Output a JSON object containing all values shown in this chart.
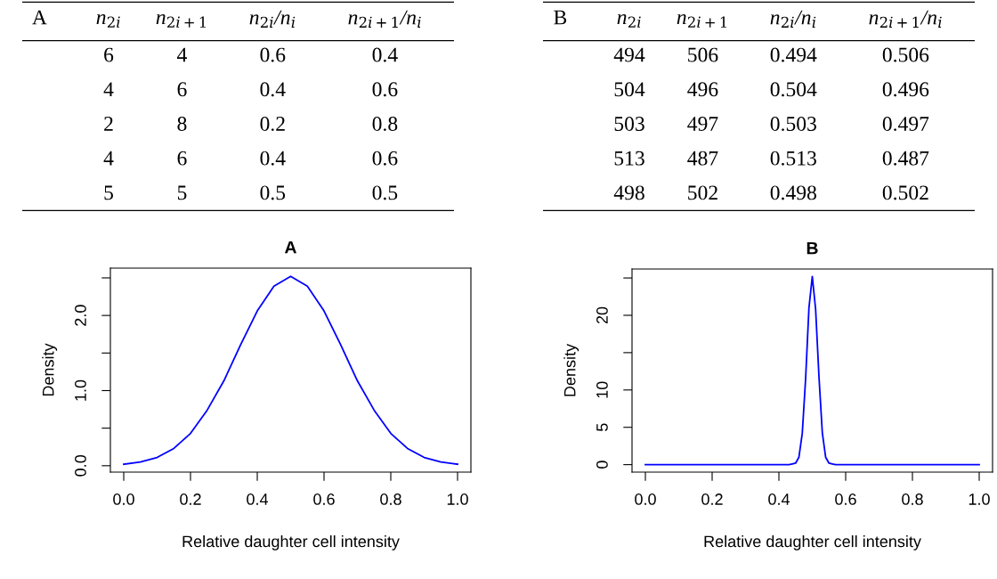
{
  "chart_data": [
    {
      "type": "other",
      "title": "A",
      "categories": [
        "n$_{2i}$",
        "n$_{2i+1}$",
        "n$_{2i}$/n$_{i}$",
        "n$_{2i+1}$/n$_{i}$"
      ],
      "cell_labels": [
        [
          "6",
          "4",
          "0.6",
          "0.4"
        ],
        [
          "4",
          "6",
          "0.4",
          "0.6"
        ],
        [
          "2",
          "8",
          "0.2",
          "0.8"
        ],
        [
          "4",
          "6",
          "0.4",
          "0.6"
        ],
        [
          "5",
          "5",
          "0.5",
          "0.5"
        ]
      ]
    },
    {
      "type": "other",
      "title": "B",
      "categories": [
        "n$_{2i}$",
        "n$_{2i+1}$",
        "n$_{2i}$/n$_{i}$",
        "n$_{2i+1}$/n$_{i}$"
      ],
      "cell_labels": [
        [
          "494",
          "506",
          "0.494",
          "0.506"
        ],
        [
          "504",
          "496",
          "0.504",
          "0.496"
        ],
        [
          "503",
          "497",
          "0.503",
          "0.497"
        ],
        [
          "513",
          "487",
          "0.513",
          "0.487"
        ],
        [
          "498",
          "502",
          "0.498",
          "0.502"
        ]
      ]
    },
    {
      "type": "line",
      "title": "A",
      "xlabel": "Relative daughter cell intensity",
      "ylabel": "Density",
      "x": [
        0,
        0.05,
        0.1,
        0.15,
        0.2,
        0.25,
        0.3,
        0.35,
        0.4,
        0.45,
        0.5,
        0.55,
        0.6,
        0.65,
        0.7,
        0.75,
        0.8,
        0.85,
        0.9,
        0.95,
        1.0
      ],
      "series": [
        {
          "color": "#0000ff",
          "values": [
            0.02,
            0.05,
            0.11,
            0.23,
            0.43,
            0.74,
            1.13,
            1.61,
            2.06,
            2.39,
            2.52,
            2.39,
            2.06,
            1.61,
            1.13,
            0.74,
            0.43,
            0.23,
            0.11,
            0.05,
            0.02
          ]
        }
      ],
      "xlim": [
        -0.04,
        1.04
      ],
      "ylim": [
        -0.085,
        2.63
      ],
      "xticks": [
        {
          "value": 0,
          "label": "0.0"
        },
        {
          "value": 0.2,
          "label": "0.2"
        },
        {
          "value": 0.4,
          "label": "0.4"
        },
        {
          "value": 0.6,
          "label": "0.6"
        },
        {
          "value": 0.8,
          "label": "0.8"
        },
        {
          "value": 1,
          "label": "1.0"
        }
      ],
      "yticks": [
        {
          "value": 0,
          "label": "0.0"
        },
        {
          "value": 0.5,
          "label": null
        },
        {
          "value": 1,
          "label": "1.0"
        },
        {
          "value": 1.5,
          "label": null
        },
        {
          "value": 2,
          "label": "2.0"
        },
        {
          "value": 2.5,
          "label": null
        }
      ]
    },
    {
      "type": "line",
      "title": "B",
      "xlabel": "Relative daughter cell intensity",
      "ylabel": "Density",
      "x": [
        0,
        0.43,
        0.44,
        0.45,
        0.46,
        0.47,
        0.48,
        0.49,
        0.5,
        0.51,
        0.52,
        0.53,
        0.54,
        0.55,
        0.56,
        0.57,
        1.0
      ],
      "series": [
        {
          "color": "#0000ff",
          "values": [
            0,
            0,
            0.1,
            0.2,
            1.0,
            4.2,
            11.5,
            21,
            25.2,
            20.8,
            11.8,
            4.3,
            1.0,
            0.2,
            0.1,
            0,
            0
          ]
        }
      ],
      "xlim": [
        -0.04,
        1.04
      ],
      "ylim": [
        -1.0,
        26.2
      ],
      "xticks": [
        {
          "value": 0,
          "label": "0.0"
        },
        {
          "value": 0.2,
          "label": "0.2"
        },
        {
          "value": 0.4,
          "label": "0.4"
        },
        {
          "value": 0.6,
          "label": "0.6"
        },
        {
          "value": 0.8,
          "label": "0.8"
        },
        {
          "value": 1,
          "label": "1.0"
        }
      ],
      "yticks": [
        0,
        5,
        10,
        {
          "value": 15,
          "label": null
        },
        20,
        {
          "value": 25,
          "label": null
        }
      ]
    }
  ]
}
